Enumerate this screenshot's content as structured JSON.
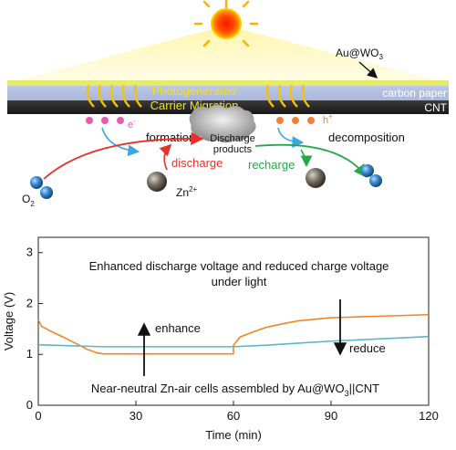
{
  "scheme": {
    "material_label": "Au@WO",
    "material_sub": "3",
    "carbon_paper": "carbon paper",
    "cnt": "CNT",
    "migration_line1": "Photogenerated",
    "migration_line2": "Carrier Migration",
    "electron": "e",
    "electron_sup": "-",
    "hole": "h",
    "hole_sup": "+",
    "formation": "formation",
    "decomposition": "decomposition",
    "products_line1": "Discharge",
    "products_line2": "products",
    "discharge": "discharge",
    "recharge": "recharge",
    "oxygen": "O",
    "oxygen_sub": "2",
    "zinc": "Zn",
    "zinc_sup": "2+",
    "colors": {
      "sun": "#ff2a00",
      "electron": "#e65ab4",
      "hole": "#f0803a",
      "discharge": "#e8302a",
      "recharge": "#24a84a",
      "formation_arrow": "#3aa6e6"
    }
  },
  "chart_data": {
    "type": "line",
    "title_line1": "Enhanced discharge voltage and reduced charge voltage",
    "title_line2": "under light",
    "annotation_enhance": "enhance",
    "annotation_reduce": "reduce",
    "caption_prefix": "Near-neutral Zn-air cells assembled by Au@WO",
    "caption_sub": "3",
    "caption_suffix": "||CNT",
    "xlabel": "Time (min)",
    "ylabel": "Voltage (V)",
    "xlim": [
      0,
      120
    ],
    "ylim": [
      0,
      3.3
    ],
    "x_ticks": [
      0,
      30,
      60,
      90,
      120
    ],
    "y_ticks": [
      0,
      1,
      2,
      3
    ],
    "series": [
      {
        "color": "#f0862a",
        "x": [
          0,
          1,
          4,
          8,
          12,
          15,
          18,
          20,
          30,
          40,
          50,
          60,
          60,
          62,
          66,
          70,
          75,
          80,
          90,
          100,
          110,
          120
        ],
        "y": [
          1.68,
          1.55,
          1.45,
          1.33,
          1.2,
          1.1,
          1.03,
          1.01,
          1.01,
          1.01,
          1.01,
          1.01,
          1.18,
          1.34,
          1.44,
          1.53,
          1.6,
          1.66,
          1.72,
          1.74,
          1.76,
          1.78
        ]
      },
      {
        "color": "#5ab8c8",
        "x": [
          0,
          10,
          20,
          30,
          40,
          50,
          60,
          70,
          80,
          90,
          100,
          110,
          120
        ],
        "y": [
          1.19,
          1.17,
          1.15,
          1.15,
          1.15,
          1.15,
          1.15,
          1.18,
          1.22,
          1.26,
          1.29,
          1.32,
          1.35
        ]
      }
    ]
  }
}
